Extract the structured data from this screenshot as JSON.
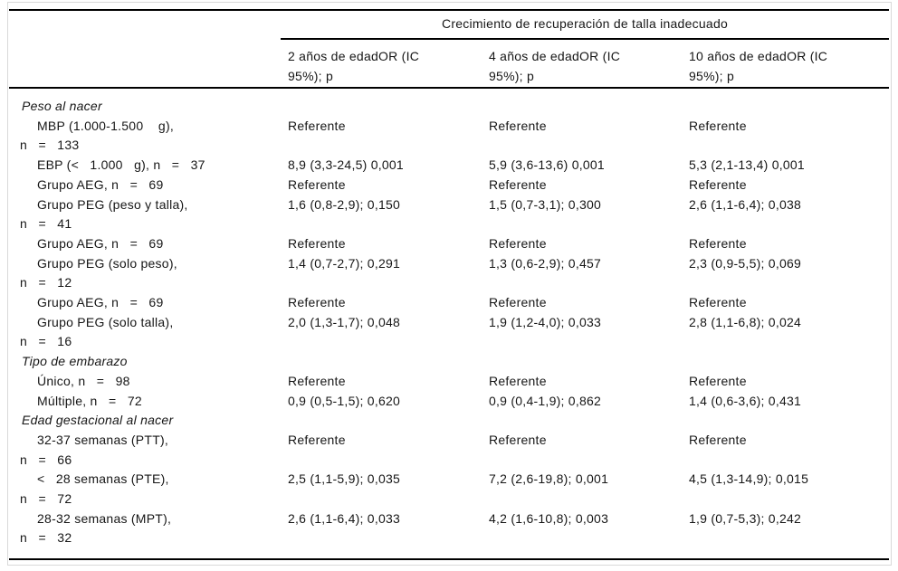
{
  "table": {
    "span_header": "Crecimiento de recuperación de talla inadecuado",
    "col_headers": [
      "2 años de edadOR (IC 95%); p",
      "4 años de edadOR (IC 95%); p",
      "10 años de edadOR (IC 95%); p"
    ],
    "rows": [
      {
        "type": "section",
        "label": "Peso al nacer"
      },
      {
        "type": "data",
        "label": "MBP (1.000-1.500    g),",
        "label2": "n   =   133",
        "values": [
          "Referente",
          "Referente",
          "Referente"
        ]
      },
      {
        "type": "data",
        "label": "EBP (<   1.000   g), n   =   37",
        "values": [
          "8,9 (3,3-24,5) 0,001",
          "5,9 (3,6-13,6) 0,001",
          "5,3 (2,1-13,4) 0,001"
        ]
      },
      {
        "type": "data",
        "label": "Grupo AEG, n   =   69",
        "values": [
          "Referente",
          "Referente",
          "Referente"
        ]
      },
      {
        "type": "data",
        "label": "Grupo PEG (peso y talla),",
        "label2": "n   =   41",
        "values": [
          "1,6 (0,8-2,9); 0,150",
          "1,5 (0,7-3,1); 0,300",
          "2,6 (1,1-6,4); 0,038"
        ]
      },
      {
        "type": "data",
        "label": "Grupo AEG, n   =   69",
        "values": [
          "Referente",
          "Referente",
          "Referente"
        ]
      },
      {
        "type": "data",
        "label": "Grupo PEG (solo peso),",
        "label2": "n   =   12",
        "values": [
          "1,4 (0,7-2,7); 0,291",
          "1,3 (0,6-2,9); 0,457",
          "2,3 (0,9-5,5); 0,069"
        ]
      },
      {
        "type": "data",
        "label": "Grupo AEG, n   =   69",
        "values": [
          "Referente",
          "Referente",
          "Referente"
        ]
      },
      {
        "type": "data",
        "label": "Grupo PEG (solo talla),",
        "label2": "n   =   16",
        "values": [
          "2,0 (1,3-1,7); 0,048",
          "1,9 (1,2-4,0); 0,033",
          "2,8 (1,1-6,8); 0,024"
        ]
      },
      {
        "type": "section",
        "label": "Tipo de embarazo"
      },
      {
        "type": "data",
        "label": "Único, n   =   98",
        "values": [
          "Referente",
          "Referente",
          "Referente"
        ]
      },
      {
        "type": "data",
        "label": "Múltiple, n   =   72",
        "values": [
          "0,9 (0,5-1,5); 0,620",
          "0,9 (0,4-1,9); 0,862",
          "1,4 (0,6-3,6); 0,431"
        ]
      },
      {
        "type": "section",
        "label": "Edad gestacional al nacer"
      },
      {
        "type": "data",
        "label": "32-37 semanas (PTT),",
        "label2": "n   =   66",
        "values": [
          "Referente",
          "Referente",
          "Referente"
        ]
      },
      {
        "type": "data",
        "label": "<   28 semanas (PTE),",
        "label2": "n   =   72",
        "values": [
          "2,5 (1,1-5,9); 0,035",
          "7,2 (2,6-19,8); 0,001",
          "4,5 (1,3-14,9); 0,015"
        ]
      },
      {
        "type": "data",
        "label": "28-32 semanas (MPT),",
        "label2": "n   =   32",
        "values": [
          "2,6 (1,1-6,4); 0,033",
          "4,2 (1,6-10,8); 0,003",
          "1,9 (0,7-5,3); 0,242"
        ]
      }
    ]
  }
}
